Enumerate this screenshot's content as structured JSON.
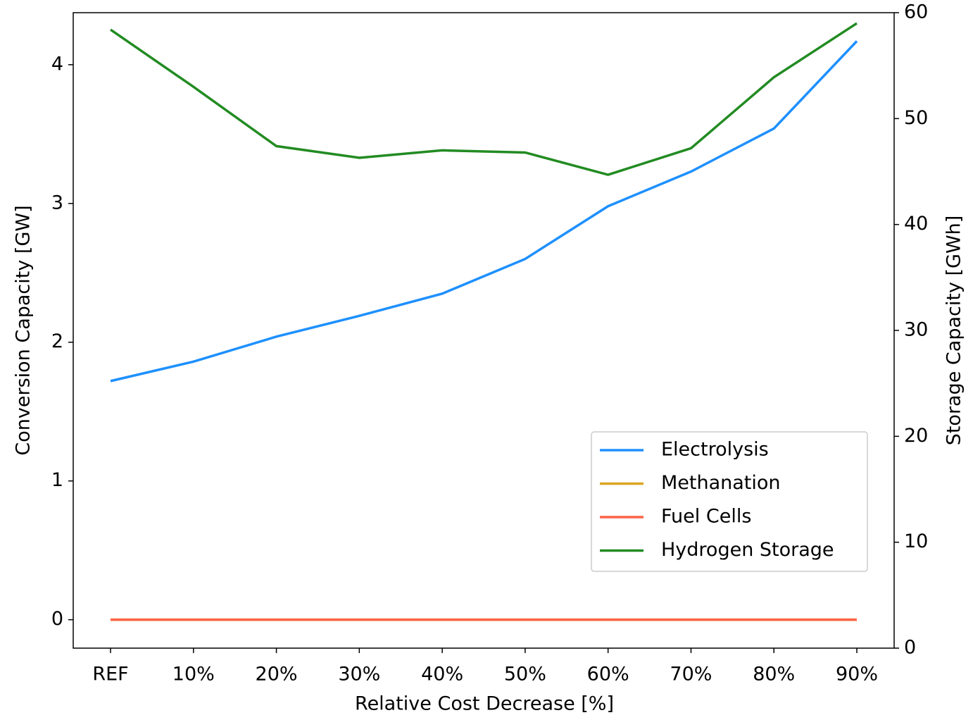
{
  "chart_data": {
    "type": "line",
    "xlabel": "Relative Cost Decrease [%]",
    "ylabel": "Conversion Capacity [GW]",
    "y2label": "Storage Capacity [GWh]",
    "categories": [
      "REF",
      "10%",
      "20%",
      "30%",
      "40%",
      "50%",
      "60%",
      "70%",
      "80%",
      "90%"
    ],
    "series": [
      {
        "name": "Electrolysis",
        "color": "#1e90ff",
        "values": [
          1.72,
          1.86,
          2.04,
          2.19,
          2.35,
          2.6,
          2.98,
          3.23,
          3.54,
          4.17
        ]
      },
      {
        "name": "Methanation",
        "color": "#daa520",
        "values": [
          0,
          0,
          0,
          0,
          0,
          0,
          0,
          0,
          0,
          0
        ]
      },
      {
        "name": "Fuel Cells",
        "color": "#ff6347",
        "values": [
          0,
          0,
          0,
          0,
          0,
          0,
          0,
          0,
          0,
          0
        ]
      },
      {
        "name": "Hydrogen Storage",
        "color": "#228b22",
        "axis": "y2",
        "values": [
          58.4,
          53.0,
          47.4,
          46.3,
          47.0,
          46.8,
          44.7,
          47.2,
          53.9,
          59.0
        ]
      }
    ],
    "ylim": [
      -0.205,
      4.375
    ],
    "yticks": [
      0,
      1,
      2,
      3,
      4
    ],
    "y2lim": [
      0,
      60
    ],
    "y2ticks": [
      0,
      10,
      20,
      30,
      40,
      50,
      60
    ],
    "legend": "lower right",
    "grid": false
  }
}
